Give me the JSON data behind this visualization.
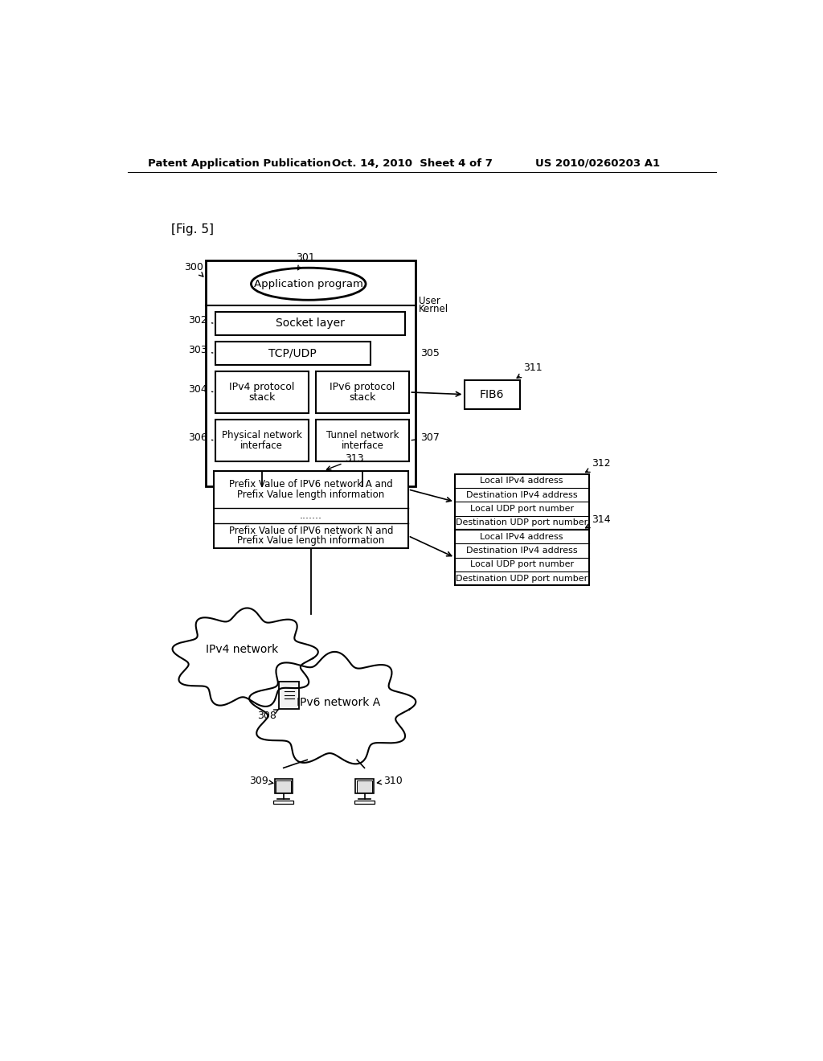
{
  "bg_color": "#ffffff",
  "line_color": "#000000",
  "text_color": "#000000",
  "header_left": "Patent Application Publication",
  "header_mid": "Oct. 14, 2010  Sheet 4 of 7",
  "header_right": "US 2010/0260203 A1",
  "fig_label": "[Fig. 5]",
  "labels": {
    "app": "Application program",
    "user": "User",
    "kernel": "Kernel",
    "socket": "Socket layer",
    "tcp": "TCP/UDP",
    "ipv4_stack": [
      "IPv4 protocol",
      "stack"
    ],
    "ipv6_stack": [
      "IPv6 protocol",
      "stack"
    ],
    "fib6": "FIB6",
    "phys_net": [
      "Physical network",
      "interface"
    ],
    "tunnel_net": [
      "Tunnel network",
      "interface"
    ],
    "prefix_a": [
      "Prefix Value of IPV6 network A and",
      "Prefix Value length information"
    ],
    "dots": ".......",
    "prefix_n": [
      "Prefix Value of IPV6 network N and",
      "Prefix Value length information"
    ],
    "box312": [
      "Local IPv4 address",
      "Destination IPv4 address",
      "Local UDP port number",
      "Destination UDP port number"
    ],
    "box314": [
      "Local IPv4 address",
      "Destination IPv4 address",
      "Local UDP port number",
      "Destination UDP port number"
    ],
    "ipv4_net": "IPv4 network",
    "ipv6_net": "IPv6 network A",
    "n300": "300",
    "n301": "301",
    "n302": "302",
    "n303": "303",
    "n304": "304",
    "n305": "305",
    "n306": "306",
    "n307": "307",
    "n308": "308",
    "n309": "309",
    "n310": "310",
    "n311": "311",
    "n312": "312",
    "n313": "313",
    "n314": "314"
  }
}
